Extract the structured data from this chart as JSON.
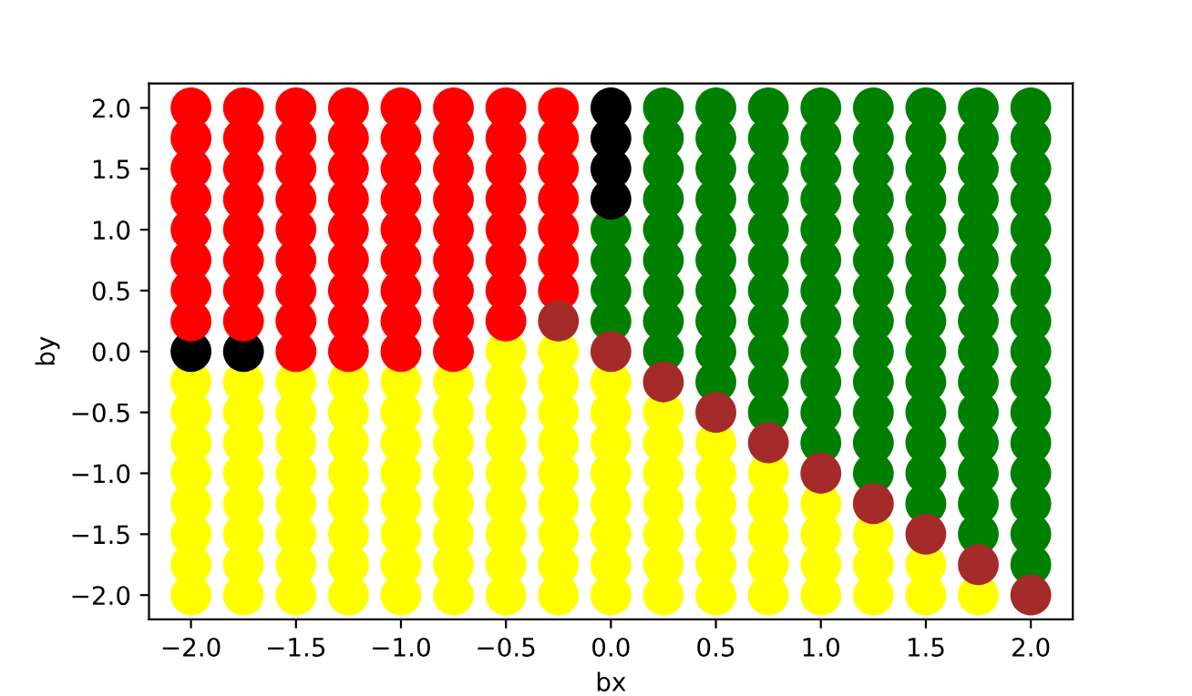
{
  "chart_data": {
    "type": "scatter",
    "xlabel": "bx",
    "ylabel": "by",
    "marker": "circle",
    "xlim": [
      -2.2,
      2.2
    ],
    "ylim": [
      -2.2,
      2.2
    ],
    "xticks": [
      {
        "value": -2,
        "label": "−2.0"
      },
      {
        "value": -1.5,
        "label": "−1.5"
      },
      {
        "value": -1,
        "label": "−1.0"
      },
      {
        "value": -0.5,
        "label": "−0.5"
      },
      {
        "value": 0,
        "label": "0.0"
      },
      {
        "value": 0.5,
        "label": "0.5"
      },
      {
        "value": 1,
        "label": "1.0"
      },
      {
        "value": 1.5,
        "label": "1.5"
      },
      {
        "value": 2,
        "label": "2.0"
      }
    ],
    "yticks": [
      {
        "value": -2,
        "label": "−2.0"
      },
      {
        "value": -1.5,
        "label": "−1.5"
      },
      {
        "value": -1,
        "label": "−1.0"
      },
      {
        "value": -0.5,
        "label": "−0.5"
      },
      {
        "value": 0,
        "label": "0.0"
      },
      {
        "value": 0.5,
        "label": "0.5"
      },
      {
        "value": 1,
        "label": "1.0"
      },
      {
        "value": 1.5,
        "label": "1.5"
      },
      {
        "value": 2,
        "label": "2.0"
      }
    ],
    "series": [
      {
        "color": "#ffff00",
        "x": [
          -2,
          -2,
          -2,
          -2,
          -2,
          -2,
          -2,
          -2,
          -1.75,
          -1.75,
          -1.75,
          -1.75,
          -1.75,
          -1.75,
          -1.75,
          -1.75,
          -1.5,
          -1.5,
          -1.5,
          -1.5,
          -1.5,
          -1.5,
          -1.5,
          -1.5,
          -1.25,
          -1.25,
          -1.25,
          -1.25,
          -1.25,
          -1.25,
          -1.25,
          -1.25,
          -1,
          -1,
          -1,
          -1,
          -1,
          -1,
          -1,
          -1,
          -0.75,
          -0.75,
          -0.75,
          -0.75,
          -0.75,
          -0.75,
          -0.75,
          -0.75,
          -0.5,
          -0.5,
          -0.5,
          -0.5,
          -0.5,
          -0.5,
          -0.5,
          -0.5,
          -0.5,
          -0.25,
          -0.25,
          -0.25,
          -0.25,
          -0.25,
          -0.25,
          -0.25,
          -0.25,
          -0.25,
          0,
          0,
          0,
          0,
          0,
          0,
          0,
          0,
          0.25,
          0.25,
          0.25,
          0.25,
          0.25,
          0.25,
          0.25,
          0.5,
          0.5,
          0.5,
          0.5,
          0.5,
          0.5,
          0.75,
          0.75,
          0.75,
          0.75,
          0.75,
          1,
          1,
          1,
          1,
          1.25,
          1.25,
          1.25,
          1.5,
          1.5,
          1.75
        ],
        "values": [
          -2,
          -1.75,
          -1.5,
          -1.25,
          -1,
          -0.75,
          -0.5,
          -0.25,
          -2,
          -1.75,
          -1.5,
          -1.25,
          -1,
          -0.75,
          -0.5,
          -0.25,
          -2,
          -1.75,
          -1.5,
          -1.25,
          -1,
          -0.75,
          -0.5,
          -0.25,
          -2,
          -1.75,
          -1.5,
          -1.25,
          -1,
          -0.75,
          -0.5,
          -0.25,
          -2,
          -1.75,
          -1.5,
          -1.25,
          -1,
          -0.75,
          -0.5,
          -0.25,
          -2,
          -1.75,
          -1.5,
          -1.25,
          -1,
          -0.75,
          -0.5,
          -0.25,
          -2,
          -1.75,
          -1.5,
          -1.25,
          -1,
          -0.75,
          -0.5,
          -0.25,
          0,
          -2,
          -1.75,
          -1.5,
          -1.25,
          -1,
          -0.75,
          -0.5,
          -0.25,
          0,
          -2,
          -1.75,
          -1.5,
          -1.25,
          -1,
          -0.75,
          -0.5,
          -0.25,
          -2,
          -1.75,
          -1.5,
          -1.25,
          -1,
          -0.75,
          -0.5,
          -2,
          -1.75,
          -1.5,
          -1.25,
          -1,
          -0.75,
          -2,
          -1.75,
          -1.5,
          -1.25,
          -1,
          -2,
          -1.75,
          -1.5,
          -1.25,
          -2,
          -1.75,
          -1.5,
          -2,
          -1.75,
          -2
        ]
      },
      {
        "color": "#008000",
        "x": [
          0,
          0,
          0,
          0,
          0.25,
          0.25,
          0.25,
          0.25,
          0.25,
          0.25,
          0.25,
          0.25,
          0.25,
          0.5,
          0.5,
          0.5,
          0.5,
          0.5,
          0.5,
          0.5,
          0.5,
          0.5,
          0.5,
          0.75,
          0.75,
          0.75,
          0.75,
          0.75,
          0.75,
          0.75,
          0.75,
          0.75,
          0.75,
          0.75,
          1,
          1,
          1,
          1,
          1,
          1,
          1,
          1,
          1,
          1,
          1,
          1,
          1.25,
          1.25,
          1.25,
          1.25,
          1.25,
          1.25,
          1.25,
          1.25,
          1.25,
          1.25,
          1.25,
          1.25,
          1.25,
          1.5,
          1.5,
          1.5,
          1.5,
          1.5,
          1.5,
          1.5,
          1.5,
          1.5,
          1.5,
          1.5,
          1.5,
          1.5,
          1.5,
          1.75,
          1.75,
          1.75,
          1.75,
          1.75,
          1.75,
          1.75,
          1.75,
          1.75,
          1.75,
          1.75,
          1.75,
          1.75,
          1.75,
          1.75,
          2,
          2,
          2,
          2,
          2,
          2,
          2,
          2,
          2,
          2,
          2,
          2,
          2,
          2,
          2,
          2
        ],
        "values": [
          0.25,
          0.5,
          0.75,
          1,
          0,
          0.25,
          0.5,
          0.75,
          1,
          1.25,
          1.5,
          1.75,
          2,
          -0.25,
          0,
          0.25,
          0.5,
          0.75,
          1,
          1.25,
          1.5,
          1.75,
          2,
          -0.5,
          -0.25,
          0,
          0.25,
          0.5,
          0.75,
          1,
          1.25,
          1.5,
          1.75,
          2,
          -0.75,
          -0.5,
          -0.25,
          0,
          0.25,
          0.5,
          0.75,
          1,
          1.25,
          1.5,
          1.75,
          2,
          -1,
          -0.75,
          -0.5,
          -0.25,
          0,
          0.25,
          0.5,
          0.75,
          1,
          1.25,
          1.5,
          1.75,
          2,
          -1.25,
          -1,
          -0.75,
          -0.5,
          -0.25,
          0,
          0.25,
          0.5,
          0.75,
          1,
          1.25,
          1.5,
          1.75,
          2,
          -1.5,
          -1.25,
          -1,
          -0.75,
          -0.5,
          -0.25,
          0,
          0.25,
          0.5,
          0.75,
          1,
          1.25,
          1.5,
          1.75,
          2,
          -1.75,
          -1.5,
          -1.25,
          -1,
          -0.75,
          -0.5,
          -0.25,
          0,
          0.25,
          0.5,
          0.75,
          1,
          1.25,
          1.5,
          1.75,
          2
        ]
      },
      {
        "color": "#000000",
        "x": [
          -2,
          -1.75,
          0,
          0,
          0,
          0
        ],
        "values": [
          0,
          0,
          1.25,
          1.5,
          1.75,
          2
        ]
      },
      {
        "color": "#ff0000",
        "x": [
          -2,
          -2,
          -2,
          -2,
          -2,
          -2,
          -2,
          -2,
          -1.75,
          -1.75,
          -1.75,
          -1.75,
          -1.75,
          -1.75,
          -1.75,
          -1.75,
          -1.5,
          -1.5,
          -1.5,
          -1.5,
          -1.5,
          -1.5,
          -1.5,
          -1.5,
          -1.5,
          -1.25,
          -1.25,
          -1.25,
          -1.25,
          -1.25,
          -1.25,
          -1.25,
          -1.25,
          -1.25,
          -1,
          -1,
          -1,
          -1,
          -1,
          -1,
          -1,
          -1,
          -1,
          -0.75,
          -0.75,
          -0.75,
          -0.75,
          -0.75,
          -0.75,
          -0.75,
          -0.75,
          -0.75,
          -0.5,
          -0.5,
          -0.5,
          -0.5,
          -0.5,
          -0.5,
          -0.5,
          -0.5,
          -0.25,
          -0.25,
          -0.25,
          -0.25,
          -0.25,
          -0.25,
          -0.25
        ],
        "values": [
          0.25,
          0.5,
          0.75,
          1,
          1.25,
          1.5,
          1.75,
          2,
          0.25,
          0.5,
          0.75,
          1,
          1.25,
          1.5,
          1.75,
          2,
          0,
          0.25,
          0.5,
          0.75,
          1,
          1.25,
          1.5,
          1.75,
          2,
          0,
          0.25,
          0.5,
          0.75,
          1,
          1.25,
          1.5,
          1.75,
          2,
          0,
          0.25,
          0.5,
          0.75,
          1,
          1.25,
          1.5,
          1.75,
          2,
          0,
          0.25,
          0.5,
          0.75,
          1,
          1.25,
          1.5,
          1.75,
          2,
          0.25,
          0.5,
          0.75,
          1,
          1.25,
          1.5,
          1.75,
          2,
          0.5,
          0.75,
          1,
          1.25,
          1.5,
          1.75,
          2
        ]
      },
      {
        "color": "#a52a2a",
        "x": [
          -0.25,
          0,
          0.25,
          0.5,
          0.75,
          1,
          1.25,
          1.5,
          1.75,
          2
        ],
        "values": [
          0.25,
          0,
          -0.25,
          -0.5,
          -0.75,
          -1,
          -1.25,
          -1.5,
          -1.75,
          -2
        ]
      }
    ]
  }
}
